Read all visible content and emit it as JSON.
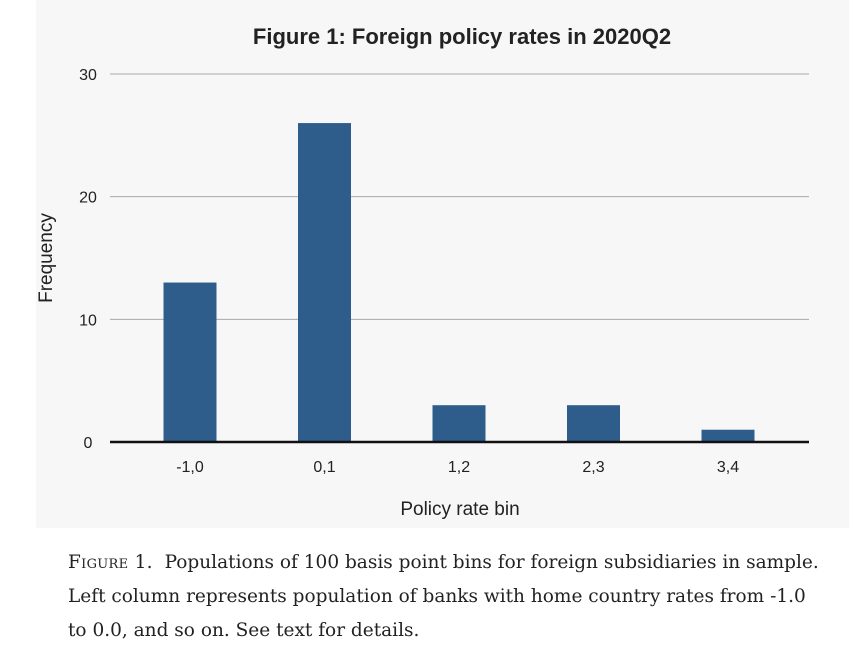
{
  "chart_data": {
    "type": "bar",
    "title": "Figure 1: Foreign policy rates in 2020Q2",
    "xlabel": "Policy rate bin",
    "ylabel": "Frequency",
    "categories": [
      "-1,0",
      "0,1",
      "1,2",
      "2,3",
      "3,4"
    ],
    "values": [
      13,
      26,
      3,
      3,
      1
    ],
    "ylim": [
      0,
      30
    ],
    "yticks": [
      0,
      10,
      20,
      30
    ],
    "grid": true,
    "bar_color": "#2e5d8c"
  },
  "caption": {
    "lead": "Figure 1.",
    "text": "Populations of 100 basis point bins for foreign subsidiaries in sample. Left column represents population of banks with home country rates from -1.0 to 0.0, and so on. See text for details."
  }
}
